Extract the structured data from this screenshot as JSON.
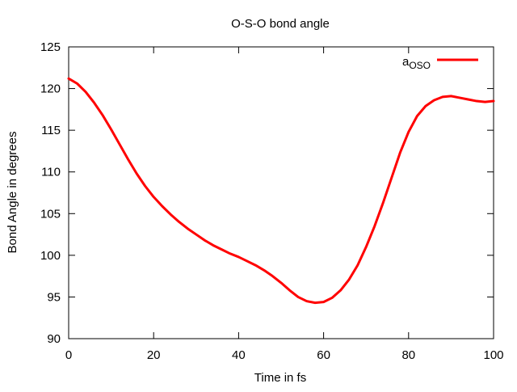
{
  "chart_data": {
    "type": "line",
    "title": "O-S-O bond angle",
    "xlabel": "Time in fs",
    "ylabel": "Bond Angle in degrees",
    "xlim": [
      0,
      100
    ],
    "ylim": [
      90,
      125
    ],
    "xticks": [
      0,
      20,
      40,
      60,
      80,
      100
    ],
    "yticks": [
      90,
      95,
      100,
      105,
      110,
      115,
      120,
      125
    ],
    "grid": false,
    "legend_position": "top-right",
    "series": [
      {
        "legend_main": "a",
        "legend_sub": "OSO",
        "color": "#ff0000",
        "x": [
          0,
          2,
          4,
          6,
          8,
          10,
          12,
          14,
          16,
          18,
          20,
          22,
          24,
          26,
          28,
          30,
          32,
          34,
          36,
          38,
          40,
          42,
          44,
          46,
          48,
          50,
          52,
          54,
          56,
          58,
          60,
          62,
          64,
          66,
          68,
          70,
          72,
          74,
          76,
          78,
          80,
          82,
          84,
          86,
          88,
          90,
          92,
          94,
          96,
          98,
          100
        ],
        "y": [
          121.2,
          120.6,
          119.6,
          118.3,
          116.8,
          115.1,
          113.3,
          111.5,
          109.8,
          108.3,
          107.0,
          105.9,
          104.9,
          104.0,
          103.2,
          102.5,
          101.8,
          101.2,
          100.7,
          100.2,
          99.8,
          99.3,
          98.8,
          98.2,
          97.5,
          96.7,
          95.8,
          95.0,
          94.5,
          94.3,
          94.4,
          94.9,
          95.8,
          97.1,
          98.8,
          101.0,
          103.5,
          106.3,
          109.3,
          112.3,
          114.8,
          116.7,
          117.9,
          118.6,
          119.0,
          119.1,
          118.9,
          118.7,
          118.5,
          118.4,
          118.5
        ]
      }
    ]
  }
}
